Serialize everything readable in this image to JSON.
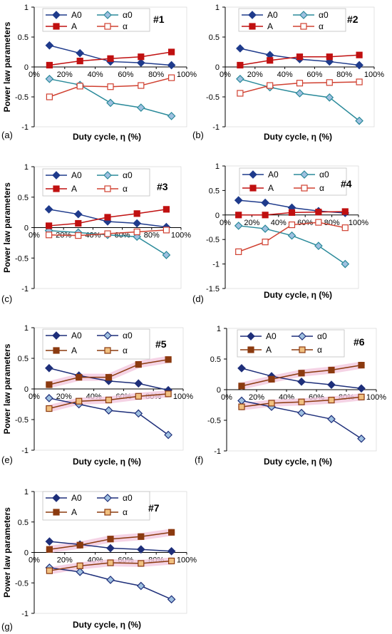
{
  "colors": {
    "A0": "#1f3b8c",
    "alpha0": "#1f3b8c",
    "A": "#c01010",
    "alpha": "#d04030",
    "A_brown": "#8b3a0f",
    "alpha_tan": "#c8782c",
    "highlight": "#f3c8de"
  },
  "chart_data": [
    {
      "type": "line",
      "id": "#1",
      "panel": "(a)",
      "xlabel": "Duty cycle, η (%)",
      "ylabel": "Power law parameters",
      "x": [
        10,
        30,
        50,
        70,
        90
      ],
      "ylim": [
        -1,
        1
      ],
      "xticks": [
        "0%",
        "20%",
        "40%",
        "60%",
        "80%",
        "100%"
      ],
      "yticks": [
        "1",
        "0.5",
        "0",
        "-0.5",
        "-1"
      ],
      "series": [
        {
          "name": "A0",
          "values": [
            0.36,
            0.23,
            0.09,
            0.07,
            0.03
          ]
        },
        {
          "name": "α0",
          "values": [
            -0.2,
            -0.3,
            -0.6,
            -0.68,
            -0.82
          ]
        },
        {
          "name": "A",
          "values": [
            0.03,
            0.1,
            0.14,
            0.17,
            0.25
          ]
        },
        {
          "name": "α",
          "values": [
            -0.5,
            -0.32,
            -0.33,
            -0.31,
            -0.18
          ]
        }
      ]
    },
    {
      "type": "line",
      "id": "#2",
      "panel": "(b)",
      "xlabel": "Duty cycle, η (%)",
      "ylabel": "",
      "x": [
        10,
        30,
        50,
        70,
        90
      ],
      "ylim": [
        -1,
        1
      ],
      "xticks": [
        "0%",
        "20%",
        "40%",
        "60%",
        "80%",
        "100%"
      ],
      "yticks": [
        "1",
        "0.5",
        "0",
        "-0.5",
        "-1"
      ],
      "series": [
        {
          "name": "A0",
          "values": [
            0.31,
            0.2,
            0.13,
            0.09,
            0.03
          ]
        },
        {
          "name": "α0",
          "values": [
            -0.2,
            -0.34,
            -0.44,
            -0.51,
            -0.9
          ]
        },
        {
          "name": "A",
          "values": [
            0.03,
            0.11,
            0.17,
            0.17,
            0.2
          ]
        },
        {
          "name": "α",
          "values": [
            -0.44,
            -0.31,
            -0.27,
            -0.26,
            -0.25
          ]
        }
      ]
    },
    {
      "type": "line",
      "id": "#3",
      "panel": "(c)",
      "xlabel": "",
      "ylabel": "Power law parameters",
      "x": [
        10,
        30,
        50,
        70,
        90
      ],
      "ylim": [
        -1,
        1
      ],
      "xticks": [
        "0%",
        "20%",
        "40%",
        "60%",
        "80%",
        "100%"
      ],
      "yticks": [
        "1",
        "0.5",
        "0",
        "-0.5",
        "-1"
      ],
      "series": [
        {
          "name": "A0",
          "values": [
            0.3,
            0.22,
            0.1,
            0.07,
            0.01
          ]
        },
        {
          "name": "α0",
          "values": [
            -0.05,
            -0.08,
            -0.12,
            -0.15,
            -0.45
          ]
        },
        {
          "name": "A",
          "values": [
            0.03,
            0.07,
            0.17,
            0.23,
            0.3
          ]
        },
        {
          "name": "α",
          "values": [
            -0.12,
            -0.13,
            -0.1,
            -0.07,
            -0.04
          ]
        }
      ]
    },
    {
      "type": "line",
      "id": "#4",
      "panel": "(d)",
      "xlabel": "Duty cycle, η (%)",
      "ylabel": "",
      "x": [
        10,
        30,
        50,
        70,
        90
      ],
      "ylim": [
        -1.5,
        1
      ],
      "xticks": [
        "0%",
        "20%",
        "40%",
        "60%",
        "80%",
        "100%"
      ],
      "yticks": [
        "1",
        "0.5",
        "0",
        "-0.5",
        "-1",
        "-1.5"
      ],
      "series": [
        {
          "name": "A0",
          "values": [
            0.3,
            0.25,
            0.15,
            0.08,
            0.04
          ]
        },
        {
          "name": "α0",
          "values": [
            -0.22,
            -0.28,
            -0.42,
            -0.63,
            -1.0
          ]
        },
        {
          "name": "A",
          "values": [
            0.0,
            0.0,
            0.05,
            0.06,
            0.07
          ]
        },
        {
          "name": "α",
          "values": [
            -0.75,
            -0.55,
            -0.2,
            -0.15,
            -0.26
          ]
        }
      ]
    },
    {
      "type": "line",
      "id": "#5",
      "panel": "(e)",
      "xlabel": "Duty cycle, η (%)",
      "ylabel": "Power law parameters",
      "x": [
        10,
        30,
        50,
        70,
        90
      ],
      "ylim": [
        -1,
        1
      ],
      "xticks": [
        "0%",
        "20%",
        "40%",
        "60%",
        "80%",
        "100%"
      ],
      "yticks": [
        "1",
        "0.5",
        "0",
        "-0.5",
        "-1"
      ],
      "series": [
        {
          "name": "A0",
          "values": [
            0.34,
            0.22,
            0.13,
            0.09,
            -0.02
          ]
        },
        {
          "name": "α0",
          "values": [
            -0.15,
            -0.25,
            -0.35,
            -0.4,
            -0.75
          ]
        },
        {
          "name": "A",
          "values": [
            0.07,
            0.19,
            0.19,
            0.4,
            0.48
          ]
        },
        {
          "name": "α",
          "values": [
            -0.32,
            -0.2,
            -0.18,
            -0.12,
            -0.08
          ]
        }
      ]
    },
    {
      "type": "line",
      "id": "#6",
      "panel": "(f)",
      "xlabel": "Duty cycle, η (%)",
      "ylabel": "",
      "x": [
        10,
        30,
        50,
        70,
        90
      ],
      "ylim": [
        -1,
        1
      ],
      "xticks": [
        "0%",
        "20%",
        "40%",
        "60%",
        "80%",
        "100%"
      ],
      "yticks": [
        "1",
        "0.5",
        "0",
        "-0.5",
        "-1"
      ],
      "series": [
        {
          "name": "A0",
          "values": [
            0.35,
            0.22,
            0.13,
            0.08,
            0.02
          ]
        },
        {
          "name": "α0",
          "values": [
            -0.18,
            -0.28,
            -0.38,
            -0.48,
            -0.8
          ]
        },
        {
          "name": "A",
          "values": [
            0.06,
            0.17,
            0.27,
            0.32,
            0.4
          ]
        },
        {
          "name": "α",
          "values": [
            -0.28,
            -0.22,
            -0.2,
            -0.17,
            -0.12
          ]
        }
      ]
    },
    {
      "type": "line",
      "id": "#7",
      "panel": "(g)",
      "xlabel": "Duty cycle, η (%)",
      "ylabel": "Power law parameters",
      "x": [
        10,
        30,
        50,
        70,
        90
      ],
      "ylim": [
        -1,
        1
      ],
      "xticks": [
        "0%",
        "20%",
        "40%",
        "60%",
        "80%",
        "100%"
      ],
      "yticks": [
        "1",
        "0.5",
        "0",
        "-0.5",
        "-1"
      ],
      "series": [
        {
          "name": "A0",
          "values": [
            0.18,
            0.13,
            0.07,
            0.05,
            0.02
          ]
        },
        {
          "name": "α0",
          "values": [
            -0.25,
            -0.32,
            -0.45,
            -0.55,
            -0.77
          ]
        },
        {
          "name": "A",
          "values": [
            0.05,
            0.12,
            0.22,
            0.26,
            0.33
          ]
        },
        {
          "name": "α",
          "values": [
            -0.3,
            -0.22,
            -0.17,
            -0.18,
            -0.14
          ]
        }
      ]
    }
  ]
}
